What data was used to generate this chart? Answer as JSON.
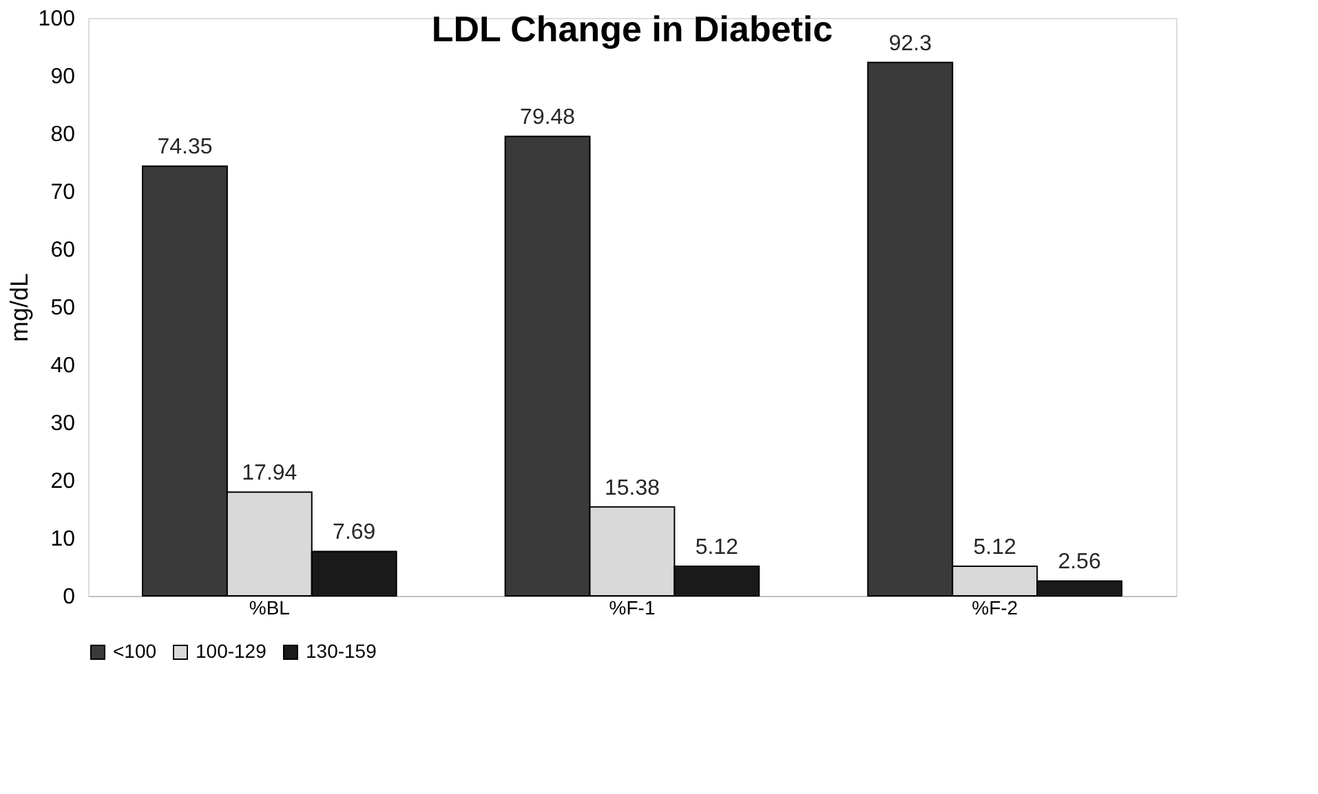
{
  "chart_data": {
    "type": "bar",
    "title": "LDL Change in Diabetic",
    "ylabel": "mg/dL",
    "categories": [
      "%BL",
      "%F-1",
      "%F-2"
    ],
    "series": [
      {
        "name": "<100",
        "color": "#3a3a3a",
        "values": [
          74.35,
          79.48,
          92.3
        ]
      },
      {
        "name": "100-129",
        "color": "#d9d9d9",
        "values": [
          17.94,
          15.38,
          5.12
        ]
      },
      {
        "name": "130-159",
        "color": "#1a1a1a",
        "values": [
          7.69,
          5.12,
          2.56
        ]
      }
    ],
    "ylim": [
      0,
      100
    ],
    "yticks": [
      0,
      10,
      20,
      30,
      40,
      50,
      60,
      70,
      80,
      90,
      100
    ],
    "data_labels": true,
    "grid": false,
    "legend": "bottom"
  }
}
